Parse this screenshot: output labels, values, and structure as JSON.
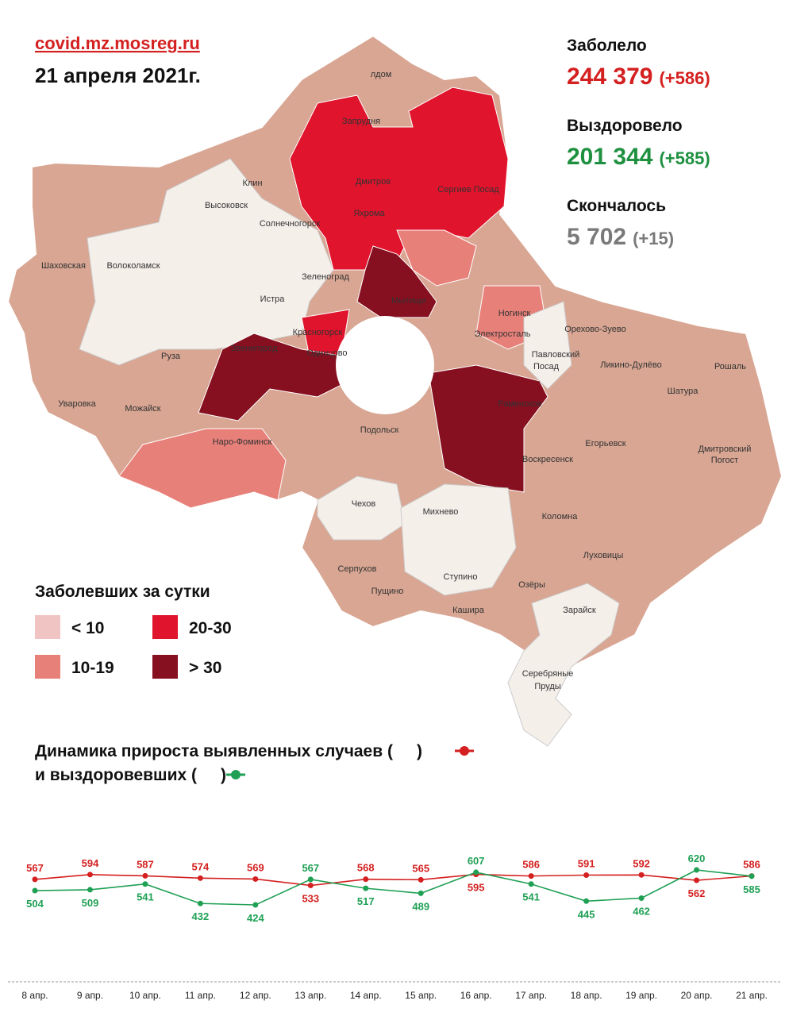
{
  "header": {
    "site": "covid.mz.mosreg.ru",
    "date": "21 апреля 2021г."
  },
  "stats": [
    {
      "label": "Заболело",
      "value": "244 379",
      "delta": "(+586)"
    },
    {
      "label": "Выздоровело",
      "value": "201 344",
      "delta": "(+585)"
    },
    {
      "label": "Скончалось",
      "value": "5 702",
      "delta": "(+15)"
    }
  ],
  "map": {
    "labels": [
      "лдом",
      "Запрудня",
      "Дмитров",
      "Яхрома",
      "Сергиев Посад",
      "Клин",
      "Высоковск",
      "Солнечногорск",
      "Шаховская",
      "Волоколамск",
      "Зеленоград",
      "Истра",
      "Мытищи",
      "Красногорск",
      "Ногинск",
      "Электросталь",
      "Орехово-Зуево",
      "Павловский",
      "Посад",
      "Ликино-Дулёво",
      "Рошаль",
      "Звенигород",
      "Одинцово",
      "Руза",
      "Раменское",
      "Шатура",
      "Уваровка",
      "Можайск",
      "Подольск",
      "Наро-Фоминск",
      "Егорьевск",
      "Дмитровский",
      "Погост",
      "Воскресенск",
      "Чехов",
      "Михнево",
      "Коломна",
      "Серпухов",
      "Пущино",
      "Ступино",
      "Луховицы",
      "Озёры",
      "Кашира",
      "Зарайск",
      "Серебряные",
      "Пруды"
    ],
    "legend_title": "Заболевших за сутки",
    "legend": [
      {
        "label": "< 10",
        "color": "#f0c4c2"
      },
      {
        "label": "20-30",
        "color": "#e0142c"
      },
      {
        "label": "10-19",
        "color": "#e8807a"
      },
      {
        "label": "> 30",
        "color": "#861020"
      }
    ]
  },
  "chart_data": {
    "type": "line",
    "title_lines": [
      [
        "Динамика прироста выявленных случаев (",
        ")"
      ],
      [
        "и выздоровевших (",
        ")"
      ]
    ],
    "categories": [
      "8 апр.",
      "9 апр.",
      "10 апр.",
      "11 апр.",
      "12 апр.",
      "13 апр.",
      "14 апр.",
      "15 апр.",
      "16 апр.",
      "17 апр.",
      "18 апр.",
      "19 апр.",
      "20 апр.",
      "21 апр."
    ],
    "series": [
      {
        "color": "#d42020",
        "values": [
          567,
          594,
          587,
          574,
          569,
          533,
          568,
          565,
          595,
          586,
          591,
          592,
          562,
          586
        ]
      },
      {
        "color": "#1fa055",
        "values": [
          504,
          509,
          541,
          432,
          424,
          567,
          517,
          489,
          607,
          541,
          445,
          462,
          620,
          585
        ]
      }
    ]
  }
}
